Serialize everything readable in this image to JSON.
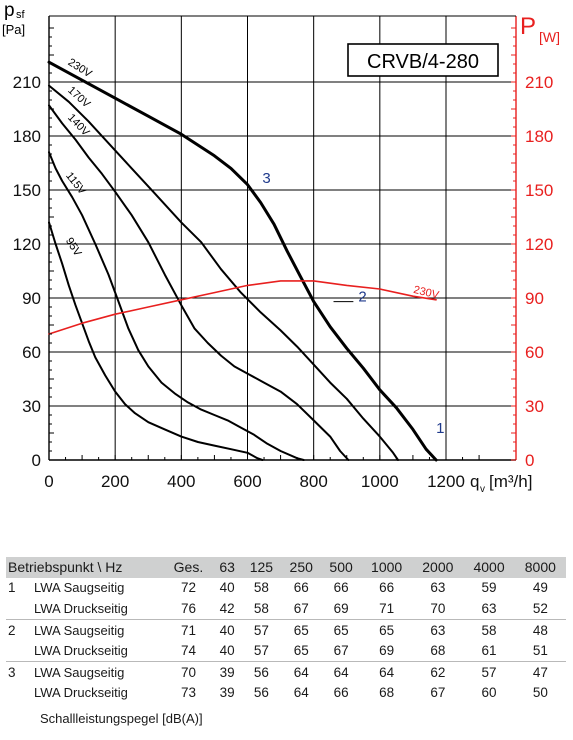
{
  "chart_data": {
    "type": "line",
    "title": "CRVB/4-280",
    "xlabel": "qᵥ [m³/h]",
    "ylabel_left": "p_sf [Pa]",
    "ylabel_right": "P [W]",
    "left_axis_label": {
      "symbol": "p",
      "sub": "sf",
      "unit": "[Pa]"
    },
    "right_axis_label": {
      "symbol": "P",
      "sub": "[W]"
    },
    "x_unit_label": {
      "symbol": "q",
      "sub": "v",
      "unit": "[m³/h]"
    },
    "xlim": [
      0,
      1300
    ],
    "ylim": [
      0,
      240
    ],
    "y2lim": [
      0,
      240
    ],
    "x_ticks": [
      0,
      200,
      400,
      600,
      800,
      1000,
      1200
    ],
    "y_ticks": [
      0,
      30,
      60,
      90,
      120,
      150,
      180,
      210
    ],
    "y2_ticks": [
      0,
      30,
      60,
      90,
      120,
      150,
      180,
      210
    ],
    "grid": true,
    "series": [
      {
        "name": "230V",
        "axis": "left",
        "color": "#000000",
        "bold": true,
        "points": [
          [
            0,
            221
          ],
          [
            100,
            211
          ],
          [
            200,
            201
          ],
          [
            300,
            191
          ],
          [
            400,
            181
          ],
          [
            500,
            169
          ],
          [
            550,
            162
          ],
          [
            600,
            153
          ],
          [
            640,
            143
          ],
          [
            680,
            131
          ],
          [
            720,
            116
          ],
          [
            760,
            102
          ],
          [
            800,
            88
          ],
          [
            850,
            74
          ],
          [
            900,
            62
          ],
          [
            950,
            51
          ],
          [
            1000,
            39
          ],
          [
            1050,
            29
          ],
          [
            1100,
            17
          ],
          [
            1140,
            6
          ],
          [
            1170,
            0
          ]
        ]
      },
      {
        "name": "170V",
        "axis": "left",
        "color": "#000000",
        "points": [
          [
            0,
            208
          ],
          [
            60,
            199
          ],
          [
            120,
            188
          ],
          [
            180,
            176
          ],
          [
            250,
            162
          ],
          [
            320,
            148
          ],
          [
            400,
            132
          ],
          [
            460,
            121
          ],
          [
            520,
            106
          ],
          [
            580,
            93
          ],
          [
            640,
            82
          ],
          [
            700,
            72
          ],
          [
            750,
            63
          ],
          [
            800,
            53
          ],
          [
            850,
            43
          ],
          [
            900,
            34
          ],
          [
            950,
            23
          ],
          [
            1000,
            13
          ],
          [
            1040,
            4
          ],
          [
            1055,
            0
          ]
        ]
      },
      {
        "name": "140V",
        "axis": "left",
        "color": "#000000",
        "points": [
          [
            0,
            197
          ],
          [
            40,
            187
          ],
          [
            80,
            178
          ],
          [
            120,
            168
          ],
          [
            160,
            159
          ],
          [
            200,
            149
          ],
          [
            250,
            136
          ],
          [
            300,
            121
          ],
          [
            350,
            103
          ],
          [
            400,
            86
          ],
          [
            440,
            73
          ],
          [
            480,
            65
          ],
          [
            520,
            58
          ],
          [
            560,
            52
          ],
          [
            600,
            48
          ],
          [
            650,
            43
          ],
          [
            700,
            38
          ],
          [
            750,
            31
          ],
          [
            800,
            22
          ],
          [
            850,
            13
          ],
          [
            880,
            5
          ],
          [
            905,
            0
          ]
        ]
      },
      {
        "name": "115V",
        "axis": "left",
        "color": "#000000",
        "points": [
          [
            0,
            171
          ],
          [
            20,
            162
          ],
          [
            40,
            155
          ],
          [
            70,
            146
          ],
          [
            100,
            136
          ],
          [
            140,
            120
          ],
          [
            180,
            103
          ],
          [
            210,
            88
          ],
          [
            240,
            73
          ],
          [
            270,
            61
          ],
          [
            300,
            52
          ],
          [
            340,
            43
          ],
          [
            380,
            37
          ],
          [
            420,
            32
          ],
          [
            460,
            28
          ],
          [
            500,
            25
          ],
          [
            540,
            22
          ],
          [
            580,
            18
          ],
          [
            620,
            14
          ],
          [
            660,
            9
          ],
          [
            700,
            5
          ],
          [
            750,
            1
          ],
          [
            770,
            0
          ]
        ]
      },
      {
        "name": "95V",
        "axis": "left",
        "color": "#000000",
        "points": [
          [
            0,
            132
          ],
          [
            20,
            120
          ],
          [
            40,
            109
          ],
          [
            60,
            97
          ],
          [
            80,
            86
          ],
          [
            100,
            76
          ],
          [
            120,
            66
          ],
          [
            140,
            57
          ],
          [
            170,
            47
          ],
          [
            200,
            38
          ],
          [
            230,
            31
          ],
          [
            260,
            26
          ],
          [
            300,
            21
          ],
          [
            350,
            17
          ],
          [
            400,
            13
          ],
          [
            450,
            10
          ],
          [
            500,
            8
          ],
          [
            550,
            6
          ],
          [
            600,
            4
          ],
          [
            630,
            1
          ],
          [
            645,
            0
          ]
        ]
      },
      {
        "name": "230V",
        "axis": "right",
        "color": "#e8201f",
        "points": [
          [
            0,
            70
          ],
          [
            100,
            76
          ],
          [
            200,
            81
          ],
          [
            300,
            85
          ],
          [
            400,
            89
          ],
          [
            500,
            93
          ],
          [
            600,
            97
          ],
          [
            700,
            99.5
          ],
          [
            800,
            99.5
          ],
          [
            900,
            97
          ],
          [
            1000,
            95
          ],
          [
            1100,
            91
          ],
          [
            1170,
            89
          ]
        ]
      }
    ],
    "annotations": [
      {
        "text": "230V",
        "x": 55,
        "y": 220,
        "angle": 32,
        "color": "#000000"
      },
      {
        "text": "170V",
        "x": 55,
        "y": 205,
        "angle": 42,
        "color": "#000000"
      },
      {
        "text": "140V",
        "x": 55,
        "y": 190,
        "angle": 46,
        "color": "#000000"
      },
      {
        "text": "115V",
        "x": 50,
        "y": 158,
        "angle": 52,
        "color": "#000000"
      },
      {
        "text": "95V",
        "x": 50,
        "y": 122,
        "angle": 58,
        "color": "#000000"
      },
      {
        "text": "230V",
        "x": 1100,
        "y": 93,
        "angle": 14,
        "color": "#e8201f"
      },
      {
        "text": "1",
        "x": 1170,
        "y": 15,
        "angle": 0,
        "color": "#1f3a8c"
      },
      {
        "text": "2",
        "x": 935,
        "y": 88,
        "angle": 0,
        "color": "#1f3a8c"
      },
      {
        "text": "3",
        "x": 645,
        "y": 154,
        "angle": 0,
        "color": "#1f3a8c"
      }
    ],
    "operating_point_leaders": [
      {
        "from": [
          860,
          88
        ],
        "to": [
          920,
          88
        ]
      }
    ]
  },
  "table": {
    "header": [
      "Betriebspunkt \\ Hz",
      "Ges.",
      "63",
      "125",
      "250",
      "500",
      "1000",
      "2000",
      "4000",
      "8000"
    ],
    "rows": [
      {
        "point": "1",
        "label": "LWA Saugseitig",
        "values": [
          "72",
          "40",
          "58",
          "66",
          "66",
          "66",
          "63",
          "59",
          "49"
        ]
      },
      {
        "point": "",
        "label": "LWA Druckseitig",
        "values": [
          "76",
          "42",
          "58",
          "67",
          "69",
          "71",
          "70",
          "63",
          "52"
        ]
      },
      {
        "point": "2",
        "label": "LWA Saugseitig",
        "values": [
          "71",
          "40",
          "57",
          "65",
          "65",
          "65",
          "63",
          "58",
          "48"
        ]
      },
      {
        "point": "",
        "label": "LWA Druckseitig",
        "values": [
          "74",
          "40",
          "57",
          "65",
          "67",
          "69",
          "68",
          "61",
          "51"
        ]
      },
      {
        "point": "3",
        "label": "LWA Saugseitig",
        "values": [
          "70",
          "39",
          "56",
          "64",
          "64",
          "64",
          "62",
          "57",
          "47"
        ]
      },
      {
        "point": "",
        "label": "LWA Druckseitig",
        "values": [
          "73",
          "39",
          "56",
          "64",
          "66",
          "68",
          "67",
          "60",
          "50"
        ]
      }
    ],
    "footnote": "Schallleistungspegel [dB(A)]"
  },
  "colors": {
    "power": "#e8201f",
    "pressure": "#000000",
    "point_label": "#1f3a8c",
    "header_bg": "#cfd0d0"
  }
}
